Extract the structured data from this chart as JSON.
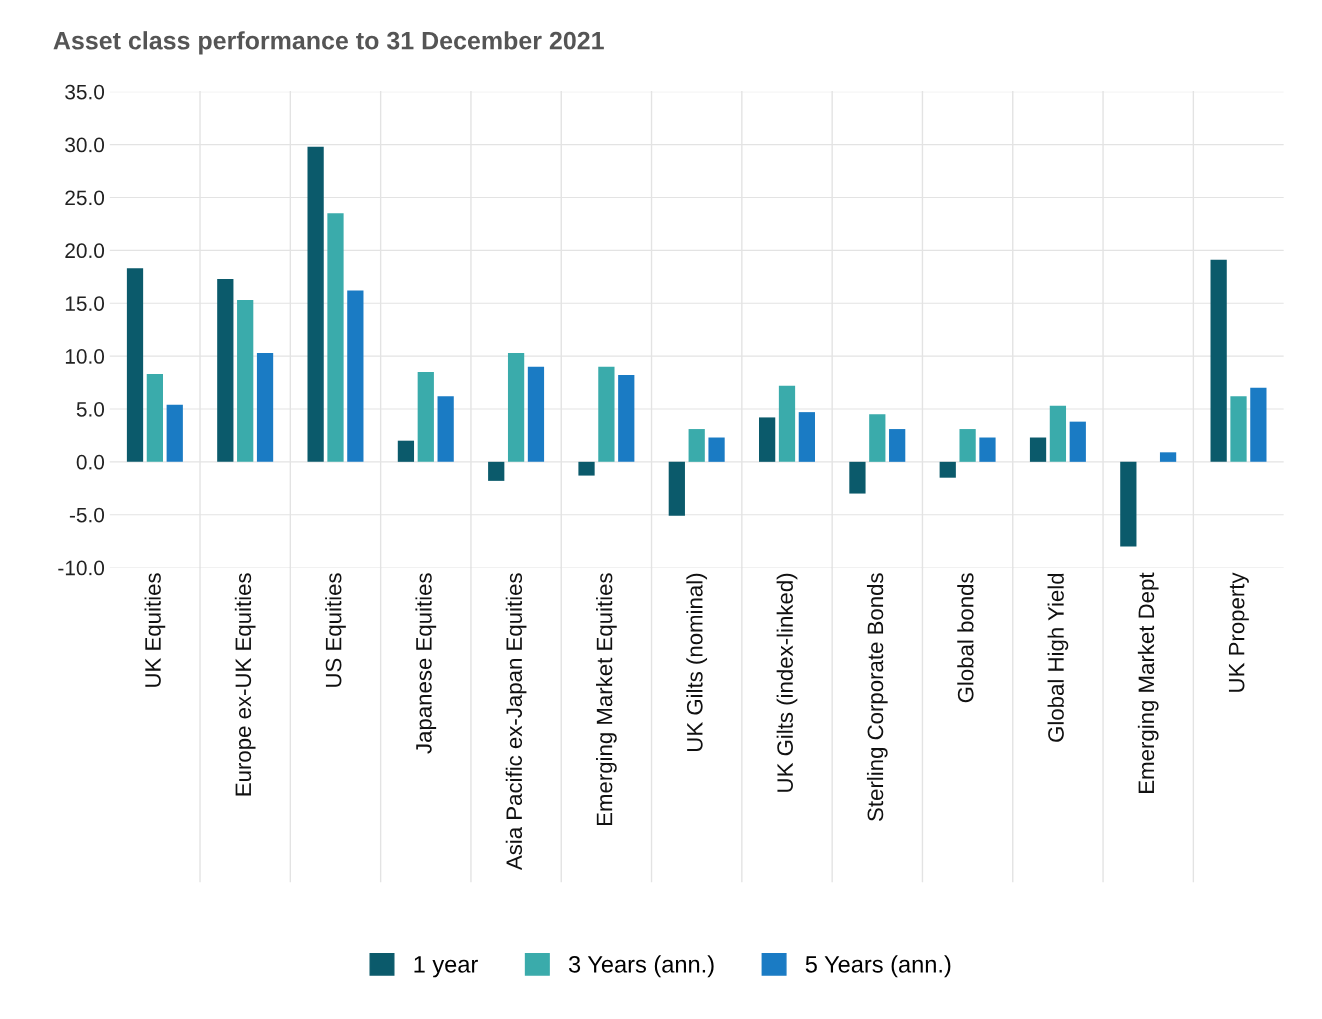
{
  "chart_data": {
    "type": "bar",
    "title": "Asset class performance to 31 December 2021",
    "categories": [
      "UK Equities",
      "Europe ex-UK Equities",
      "US Equities",
      "Japanese Equities",
      "Asia Pacific ex-Japan Equities",
      "Emerging Market Equities",
      "UK Gilts (nominal)",
      "UK Gilts (index-linked)",
      "Sterling Corporate Bonds",
      "Global bonds",
      "Global High Yield",
      "Emerging Market Dept",
      "UK Property"
    ],
    "series": [
      {
        "name": "1 year",
        "color": "#0b5a6b",
        "values": [
          18.3,
          17.3,
          29.8,
          2.0,
          -1.8,
          -1.3,
          -5.1,
          4.2,
          -3.0,
          -1.5,
          2.3,
          -8.0,
          19.1
        ]
      },
      {
        "name": "3 Years (ann.)",
        "color": "#3aabab",
        "values": [
          8.3,
          15.3,
          23.5,
          8.5,
          10.3,
          9.0,
          3.1,
          7.2,
          4.5,
          3.1,
          5.3,
          null,
          6.2
        ]
      },
      {
        "name": "5 Years (ann.)",
        "color": "#1a7bc4",
        "values": [
          5.4,
          10.3,
          16.2,
          6.2,
          9.0,
          8.2,
          2.3,
          4.7,
          3.1,
          2.3,
          3.8,
          0.9,
          7.0
        ]
      }
    ],
    "ylim": [
      -10,
      35
    ],
    "yticks": [
      {
        "value": -10,
        "label": "-10.0"
      },
      {
        "value": -5,
        "label": "-5.0"
      },
      {
        "value": 0,
        "label": "0.0"
      },
      {
        "value": 5,
        "label": "5.0"
      },
      {
        "value": 10,
        "label": "10.0"
      },
      {
        "value": 15,
        "label": "15.0"
      },
      {
        "value": 20,
        "label": "20.0"
      },
      {
        "value": 25,
        "label": "25.0"
      },
      {
        "value": 30,
        "label": "30.0"
      },
      {
        "value": 35,
        "label": "35.0"
      }
    ],
    "grid": true,
    "legend": "bottom"
  }
}
